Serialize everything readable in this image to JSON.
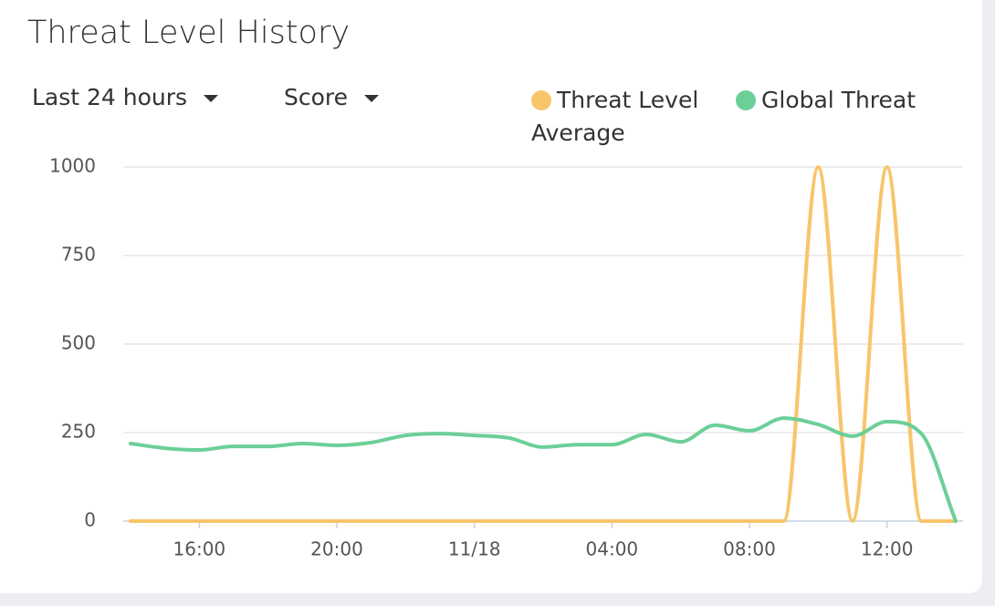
{
  "filters": [
    "Last 24 hours",
    "Score"
  ],
  "chart_data": {
    "type": "line",
    "title": "Threat Level History",
    "categories": [
      null,
      null,
      "16:00",
      null,
      null,
      null,
      "20:00",
      null,
      null,
      null,
      "11/18",
      null,
      null,
      null,
      "04:00",
      null,
      null,
      null,
      "08:00",
      null,
      null,
      null,
      "12:00",
      null,
      null
    ],
    "series": [
      {
        "name": "Threat Level Average",
        "color": "#f8c56a",
        "values": [
          0,
          0,
          0,
          0,
          0,
          0,
          0,
          0,
          0,
          0,
          0,
          0,
          0,
          0,
          0,
          0,
          0,
          0,
          0,
          0,
          1000,
          0,
          1000,
          0,
          0
        ]
      },
      {
        "name": "Global Threat",
        "color": "#6ccf97",
        "values": [
          219,
          206,
          201,
          211,
          211,
          219,
          214,
          222,
          242,
          247,
          242,
          235,
          209,
          216,
          216,
          245,
          224,
          271,
          255,
          291,
          273,
          240,
          281,
          247,
          0
        ]
      }
    ],
    "ylim": [
      0,
      1000
    ],
    "yticks": [
      0,
      250,
      500,
      750,
      1000
    ],
    "grid": true
  }
}
